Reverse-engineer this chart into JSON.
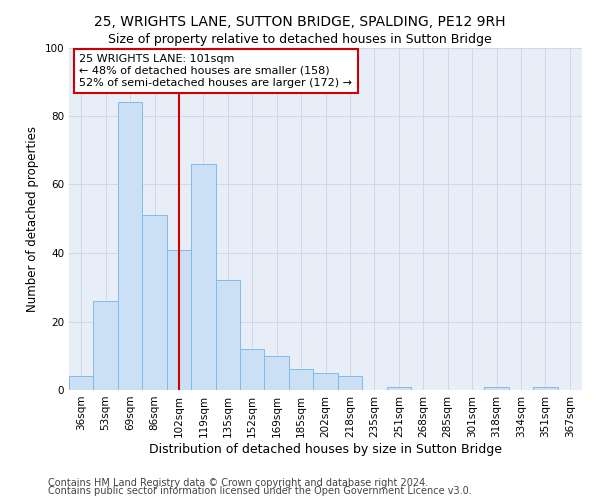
{
  "title1": "25, WRIGHTS LANE, SUTTON BRIDGE, SPALDING, PE12 9RH",
  "title2": "Size of property relative to detached houses in Sutton Bridge",
  "xlabel": "Distribution of detached houses by size in Sutton Bridge",
  "ylabel": "Number of detached properties",
  "footnote1": "Contains HM Land Registry data © Crown copyright and database right 2024.",
  "footnote2": "Contains public sector information licensed under the Open Government Licence v3.0.",
  "categories": [
    "36sqm",
    "53sqm",
    "69sqm",
    "86sqm",
    "102sqm",
    "119sqm",
    "135sqm",
    "152sqm",
    "169sqm",
    "185sqm",
    "202sqm",
    "218sqm",
    "235sqm",
    "251sqm",
    "268sqm",
    "285sqm",
    "301sqm",
    "318sqm",
    "334sqm",
    "351sqm",
    "367sqm"
  ],
  "values": [
    4,
    26,
    84,
    51,
    41,
    66,
    32,
    12,
    10,
    6,
    5,
    4,
    0,
    1,
    0,
    0,
    0,
    1,
    0,
    1,
    0
  ],
  "bar_color": "#cce0f5",
  "bar_edge_color": "#7fbce8",
  "vline_index": 4,
  "vline_color": "#cc0000",
  "annotation_line1": "25 WRIGHTS LANE: 101sqm",
  "annotation_line2": "← 48% of detached houses are smaller (158)",
  "annotation_line3": "52% of semi-detached houses are larger (172) →",
  "annotation_box_color": "#ffffff",
  "annotation_box_edge_color": "#cc0000",
  "ylim": [
    0,
    100
  ],
  "yticks": [
    0,
    20,
    40,
    60,
    80,
    100
  ],
  "grid_color": "#d0d8e8",
  "background_color": "#e8eef8",
  "title1_fontsize": 10,
  "title2_fontsize": 9,
  "xlabel_fontsize": 9,
  "ylabel_fontsize": 8.5,
  "tick_fontsize": 7.5,
  "annotation_fontsize": 8,
  "footnote_fontsize": 7
}
